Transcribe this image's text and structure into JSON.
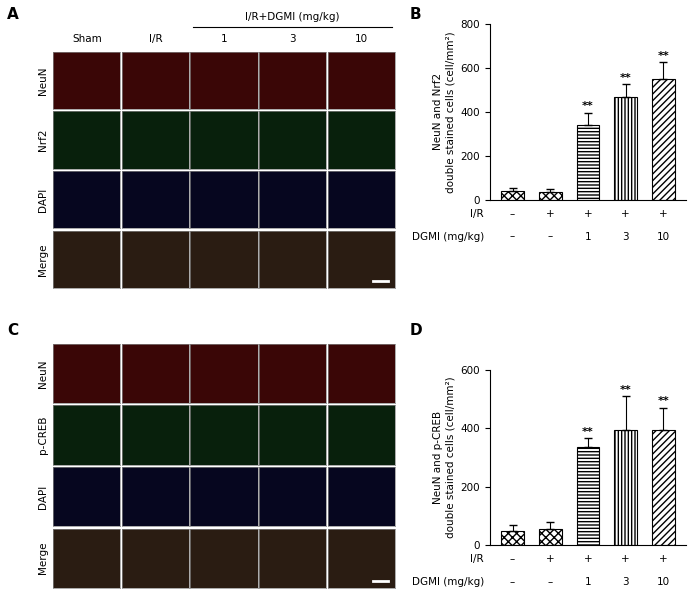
{
  "image_panels": [
    {
      "panel": "A",
      "group_header": "I/R+DGMI (mg/kg)",
      "columns": [
        "Sham",
        "I/R",
        "1",
        "3",
        "10"
      ],
      "rows": [
        "NeuN",
        "Nrf2",
        "DAPI",
        "Merge"
      ]
    },
    {
      "panel": "C",
      "rows": [
        "NeuN",
        "p-CREB",
        "DAPI",
        "Merge"
      ]
    }
  ],
  "chart_data": [
    {
      "panel": "B",
      "type": "bar",
      "ylabel": "NeuN and Nrf2\ndouble stained cells (cell/mm²)",
      "categories": [
        null,
        null,
        null,
        null,
        null
      ],
      "values": [
        40,
        35,
        340,
        465,
        550
      ],
      "errors": [
        15,
        15,
        55,
        60,
        75
      ],
      "significance": [
        null,
        null,
        "**",
        "**",
        "**"
      ],
      "condition_rows": [
        {
          "label": "I/R",
          "values": [
            "–",
            "+",
            "+",
            "+",
            "+"
          ]
        },
        {
          "label": "DGMI (mg/kg)",
          "values": [
            "–",
            "–",
            "1",
            "3",
            "10"
          ]
        }
      ],
      "ylim": [
        0,
        800
      ],
      "yticks": [
        0,
        200,
        400,
        600,
        800
      ],
      "color": "#ffffff"
    },
    {
      "panel": "D",
      "type": "bar",
      "ylabel": "NeuN and p-CREB\ndouble stained cells (cell/mm²)",
      "categories": [
        null,
        null,
        null,
        null,
        null
      ],
      "values": [
        50,
        55,
        335,
        395,
        395
      ],
      "errors": [
        20,
        25,
        30,
        115,
        75
      ],
      "significance": [
        null,
        null,
        "**",
        "**",
        "**"
      ],
      "condition_rows": [
        {
          "label": "I/R",
          "values": [
            "–",
            "+",
            "+",
            "+",
            "+"
          ]
        },
        {
          "label": "DGMI (mg/kg)",
          "values": [
            "–",
            "–",
            "1",
            "3",
            "10"
          ]
        }
      ],
      "ylim": [
        0,
        600
      ],
      "yticks": [
        0,
        200,
        400,
        600
      ],
      "color": "#ffffff"
    }
  ]
}
